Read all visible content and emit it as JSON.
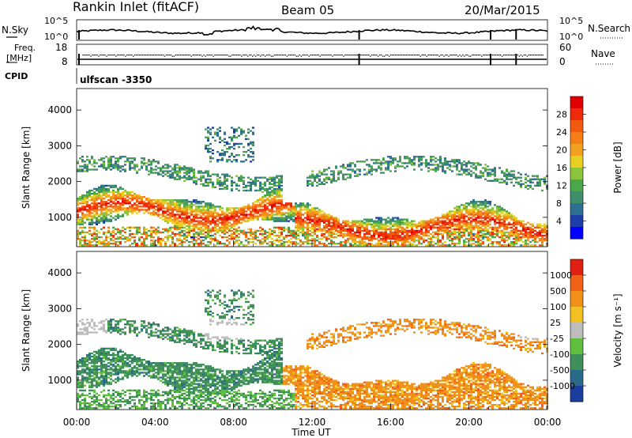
{
  "header": {
    "station": "Rankin Inlet (fitACF)",
    "beam": "Beam 05",
    "date": "20/Mar/2015"
  },
  "noise_panel": {
    "left_label": "N.Sky",
    "right_label": "N.Search",
    "left_ticks": [
      "10^5",
      "10^0"
    ],
    "right_ticks": [
      "10^5",
      "10^0"
    ]
  },
  "freq_panel": {
    "left_label_line1": "Freq.",
    "left_label_line2": "[MHz]",
    "right_label": "Nave",
    "left_ticks": [
      "18",
      "8"
    ],
    "right_ticks": [
      "60",
      "0"
    ]
  },
  "cpid": {
    "label": "CPID",
    "value": "ulfscan -3350"
  },
  "chart_data": [
    {
      "type": "heatmap",
      "title": "",
      "xlabel": "",
      "ylabel": "Slant Range [km]",
      "xlim_hours": [
        0,
        24
      ],
      "ylim": [
        180,
        4600
      ],
      "x_ticks": [
        "00:00",
        "04:00",
        "08:00",
        "12:00",
        "16:00",
        "20:00",
        "00:00"
      ],
      "y_ticks": [
        1000,
        2000,
        3000,
        4000
      ],
      "colorbar": {
        "label": "Power [dB]",
        "ticks": [
          4,
          8,
          12,
          16,
          20,
          24,
          28
        ],
        "range": [
          0,
          32
        ],
        "colors": [
          "#0000ff",
          "#1f3fa8",
          "#2f6f8f",
          "#3f8f6a",
          "#4aa84a",
          "#8cc43c",
          "#e8d020",
          "#f2a020",
          "#f57e16",
          "#f25a10",
          "#ee2a0a",
          "#e00000"
        ]
      }
    },
    {
      "type": "heatmap",
      "title": "",
      "xlabel": "Time UT",
      "ylabel": "Slant Range [km]",
      "xlim_hours": [
        0,
        24
      ],
      "ylim": [
        180,
        4600
      ],
      "x_ticks": [
        "00:00",
        "04:00",
        "08:00",
        "12:00",
        "16:00",
        "20:00",
        "00:00"
      ],
      "y_ticks": [
        1000,
        2000,
        3000,
        4000
      ],
      "colorbar": {
        "label": "Velocity [m s⁻¹]",
        "ticks": [
          1000,
          500,
          100,
          25,
          -25,
          -100,
          -500,
          -1000
        ],
        "colors": [
          "#1a3f9e",
          "#2a6a8a",
          "#3f8f5a",
          "#5fc03f",
          "#bdbdbd",
          "#f2c020",
          "#f09018",
          "#f06018",
          "#e02010"
        ]
      }
    }
  ]
}
